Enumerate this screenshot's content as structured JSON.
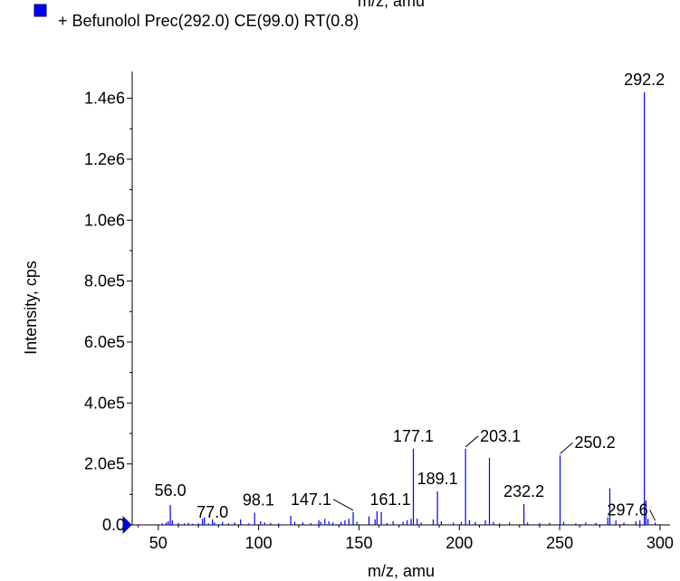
{
  "header": {
    "truncated_top_text": "m/z, amu"
  },
  "chart_data": {
    "type": "bar",
    "title": "",
    "legend": {
      "position": "top-left",
      "entries": [
        {
          "name": "+ Befunolol Prec(292.0) CE(99.0) RT(0.8)",
          "color": "#0000ff"
        }
      ]
    },
    "xlabel": "m/z, amu",
    "ylabel": "Intensity, cps",
    "xlim": [
      37,
      305
    ],
    "ylim": [
      0,
      1470000
    ],
    "x_ticks": [
      "50",
      "100",
      "150",
      "200",
      "250",
      "300"
    ],
    "x_tick_values": [
      50,
      100,
      150,
      200,
      250,
      300
    ],
    "y_ticks": [
      "0.0",
      "2.0e5",
      "4.0e5",
      "6.0e5",
      "8.0e5",
      "1.0e6",
      "1.2e6",
      "1.4e6"
    ],
    "y_tick_values": [
      0,
      200000,
      400000,
      600000,
      800000,
      1000000,
      1200000,
      1400000
    ],
    "grid": false,
    "bar_color": "#0000ff",
    "series": [
      {
        "x": [
          52,
          54,
          55,
          56,
          57,
          60,
          63,
          65,
          67,
          70,
          72,
          73,
          75,
          77,
          78,
          82,
          85,
          88,
          91,
          95,
          98,
          101,
          103,
          106,
          110,
          116,
          118,
          122,
          126,
          130,
          131,
          133,
          135,
          137,
          141,
          143,
          145,
          147.1,
          149,
          155,
          158,
          159,
          161.1,
          164,
          167,
          172,
          174,
          176,
          177.1,
          179,
          181,
          187,
          189.1,
          191,
          197,
          201,
          203.1,
          205,
          208,
          213,
          215,
          217,
          220,
          225,
          232.2,
          234,
          240,
          245,
          250.2,
          252,
          258,
          263,
          268,
          274,
          275,
          278,
          282,
          288,
          290,
          292.2,
          293,
          294,
          297.6
        ],
        "values": [
          5000,
          8000,
          12000,
          65000,
          15000,
          6000,
          5000,
          7000,
          4000,
          5000,
          20000,
          25000,
          5000,
          18000,
          8000,
          10000,
          5000,
          8000,
          18000,
          5000,
          40000,
          12000,
          8000,
          6000,
          5000,
          30000,
          10000,
          8000,
          6000,
          15000,
          10000,
          20000,
          12000,
          8000,
          10000,
          15000,
          20000,
          42000,
          10000,
          28000,
          18000,
          45000,
          42000,
          6000,
          12000,
          10000,
          15000,
          20000,
          250000,
          20000,
          8000,
          18000,
          110000,
          12000,
          8000,
          10000,
          250000,
          15000,
          10000,
          15000,
          220000,
          10000,
          5000,
          8000,
          68000,
          8000,
          6000,
          7000,
          228000,
          10000,
          5000,
          8000,
          7000,
          25000,
          120000,
          15000,
          8000,
          12000,
          15000,
          1420000,
          80000,
          20000,
          8000
        ]
      }
    ],
    "peak_labels": [
      {
        "label": "56.0",
        "x": 56.0,
        "y": 65000
      },
      {
        "label": "77.0",
        "x": 77.0,
        "y": 18000
      },
      {
        "label": "98.1",
        "x": 98.1,
        "y": 40000
      },
      {
        "label": "147.1",
        "x": 147.1,
        "y": 42000
      },
      {
        "label": "161.1",
        "x": 161.1,
        "y": 42000
      },
      {
        "label": "177.1",
        "x": 177.1,
        "y": 250000
      },
      {
        "label": "189.1",
        "x": 189.1,
        "y": 110000
      },
      {
        "label": "203.1",
        "x": 203.1,
        "y": 250000
      },
      {
        "label": "232.2",
        "x": 232.2,
        "y": 68000
      },
      {
        "label": "250.2",
        "x": 250.2,
        "y": 228000
      },
      {
        "label": "292.2",
        "x": 292.2,
        "y": 1420000
      },
      {
        "label": "297.6",
        "x": 297.6,
        "y": 8000
      }
    ]
  }
}
